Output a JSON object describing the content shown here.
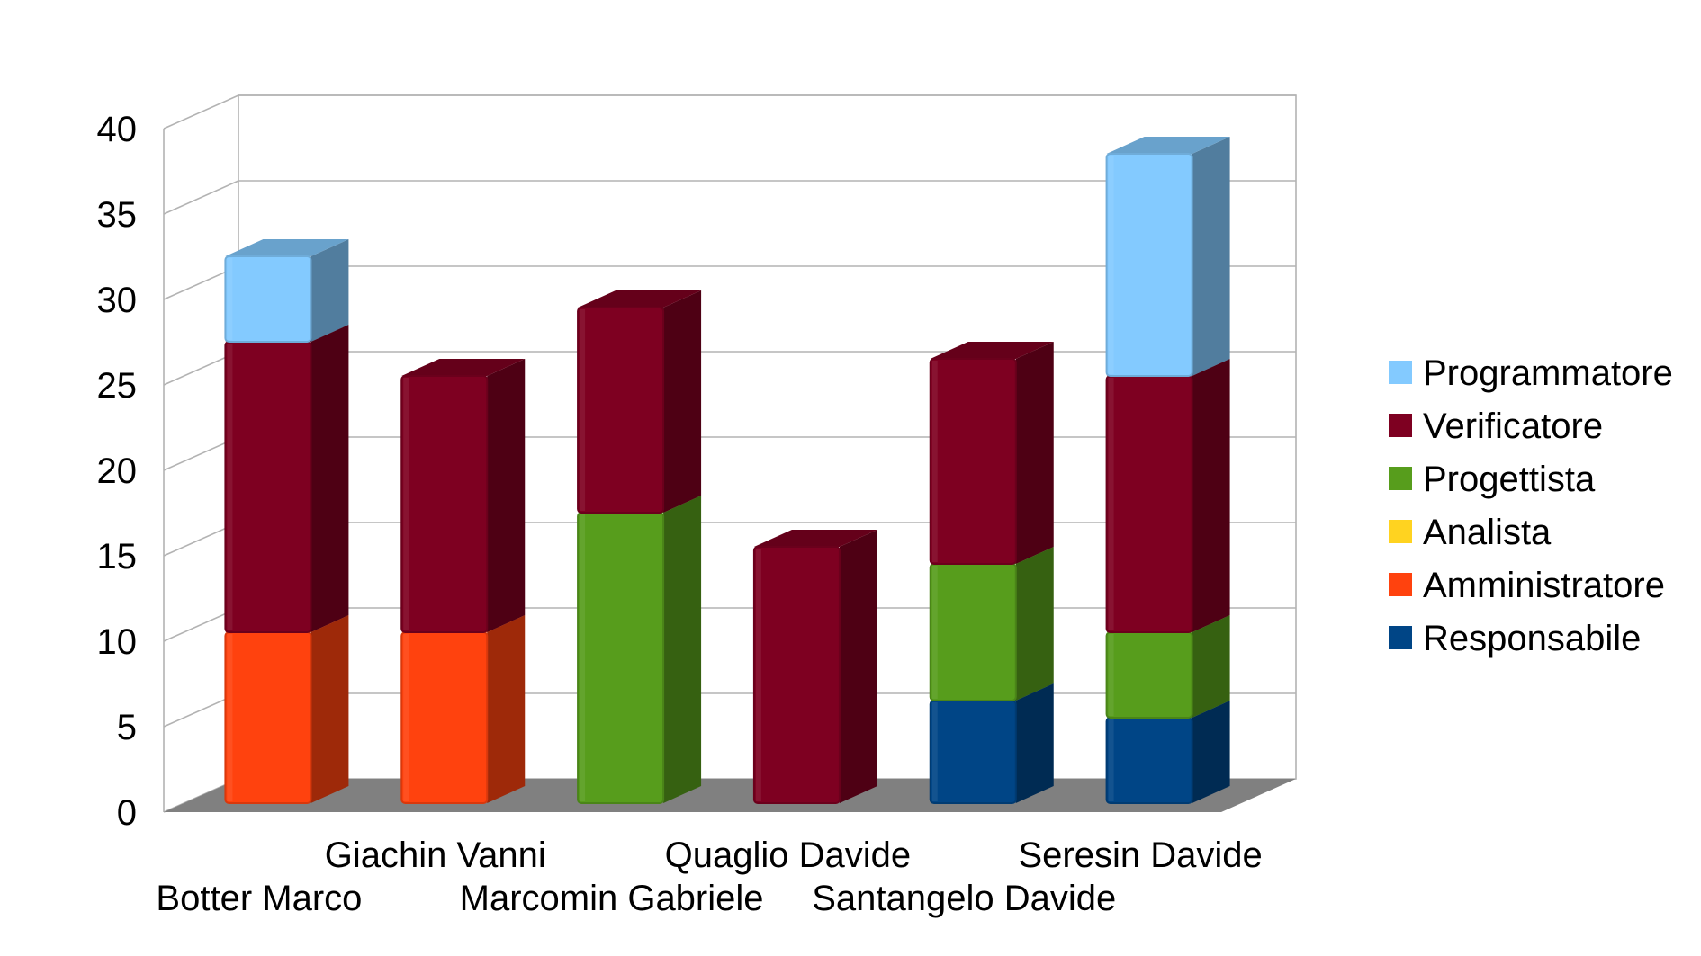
{
  "chart_data": {
    "type": "bar",
    "variant": "stacked-3d",
    "categories": [
      "Botter Marco",
      "Giachin Vanni",
      "Marcomin Gabriele",
      "Quaglio Davide",
      "Santangelo Davide",
      "Seresin Davide"
    ],
    "series": [
      {
        "name": "Responsabile",
        "color": "#004586",
        "values": [
          0,
          0,
          0,
          0,
          6,
          5
        ]
      },
      {
        "name": "Amministratore",
        "color": "#ff420e",
        "values": [
          10,
          10,
          0,
          0,
          0,
          0
        ]
      },
      {
        "name": "Analista",
        "color": "#ffd320",
        "values": [
          0,
          0,
          0,
          0,
          0,
          0
        ]
      },
      {
        "name": "Progettista",
        "color": "#579d1c",
        "values": [
          0,
          0,
          17,
          0,
          8,
          5
        ]
      },
      {
        "name": "Verificatore",
        "color": "#7e0021",
        "values": [
          17,
          15,
          12,
          15,
          12,
          15
        ]
      },
      {
        "name": "Programmatore",
        "color": "#83caff",
        "values": [
          5,
          0,
          0,
          0,
          0,
          13
        ]
      }
    ],
    "y_ticks": [
      "0",
      "5",
      "10",
      "15",
      "20",
      "25",
      "30",
      "35",
      "40"
    ],
    "ylim": [
      0,
      40
    ],
    "grid": true,
    "legend_position": "right",
    "legend_order": [
      "Programmatore",
      "Verificatore",
      "Progettista",
      "Analista",
      "Amministratore",
      "Responsabile"
    ],
    "title": "",
    "xlabel": "",
    "ylabel": ""
  }
}
